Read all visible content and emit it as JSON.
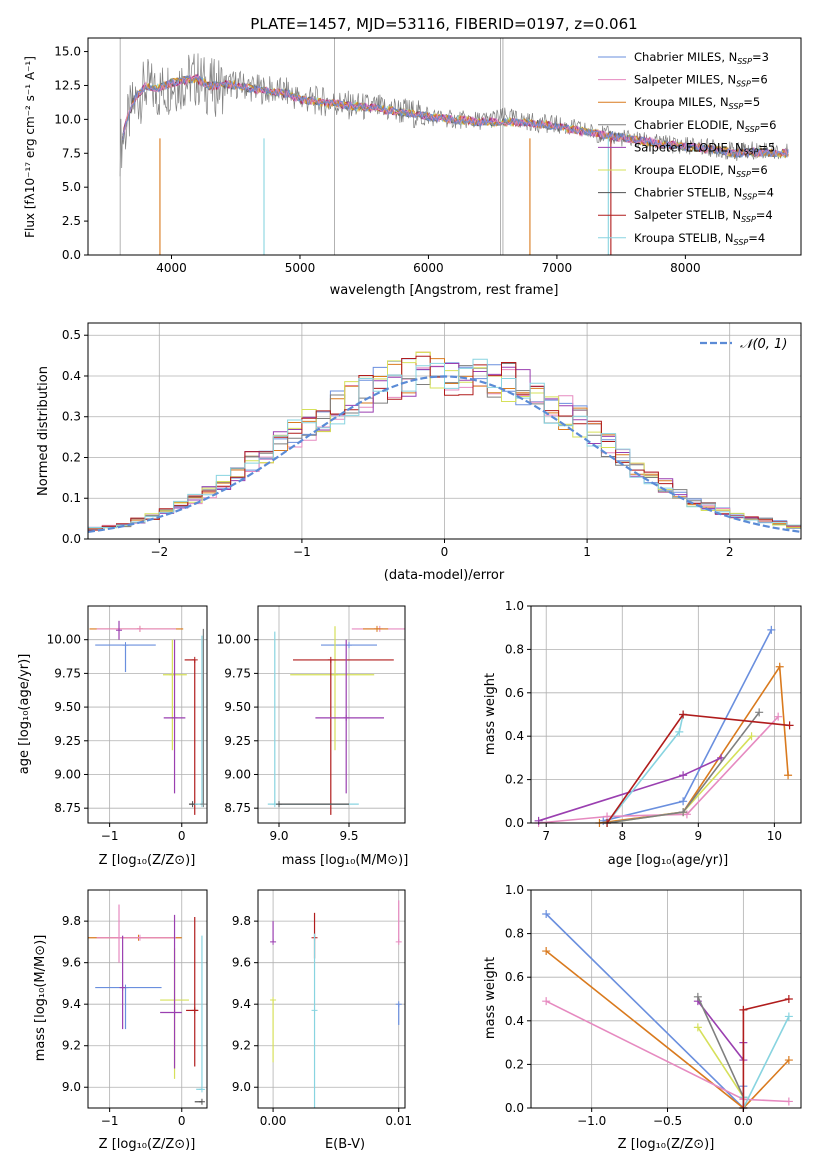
{
  "figure_title": "PLATE=1457, MJD=53116, FIBERID=0197, z=0.061",
  "model_colors": [
    "#6a8fde",
    "#e68ac0",
    "#d97a1e",
    "#7f7f7f",
    "#9a3fb0",
    "#d6e05a",
    "#505050",
    "#b01c1c",
    "#88d4e0"
  ],
  "panels": {
    "spectrum": {
      "ylabel": "Flux [fλ10⁻¹⁷ erg cm⁻² s⁻¹ A⁻¹]",
      "xlabel": "wavelength [Angstrom, rest frame]",
      "legend": [
        {
          "prefix": "Chabrier MILES, N",
          "sub": "SSP",
          "suffix": "=3"
        },
        {
          "prefix": "Salpeter MILES, N",
          "sub": "SSP",
          "suffix": "=6"
        },
        {
          "prefix": "Kroupa MILES, N",
          "sub": "SSP",
          "suffix": "=5"
        },
        {
          "prefix": "Chabrier ELODIE, N",
          "sub": "SSP",
          "suffix": "=6"
        },
        {
          "prefix": "Salpeter ELODIE, N",
          "sub": "SSP",
          "suffix": "=5"
        },
        {
          "prefix": "Kroupa ELODIE, N",
          "sub": "SSP",
          "suffix": "=6"
        },
        {
          "prefix": "Chabrier STELIB, N",
          "sub": "SSP",
          "suffix": "=4"
        },
        {
          "prefix": "Salpeter STELIB, N",
          "sub": "SSP",
          "suffix": "=4"
        },
        {
          "prefix": "Kroupa STELIB, N",
          "sub": "SSP",
          "suffix": "=4"
        }
      ]
    },
    "residuals": {
      "xlabel": "(data-model)/error",
      "ylabel": "Normed distribution",
      "legend": "𝒩(0, 1)"
    },
    "z_age": {
      "xlabel": "Z [log₁₀(Z/Z⊙)]",
      "ylabel": "age  [log₁₀(age/yr)]"
    },
    "mass_age": {
      "xlabel": "mass [log₁₀(M/M⊙)]"
    },
    "age_weight": {
      "xlabel": "age  [log₁₀(age/yr)]",
      "ylabel": "mass weight"
    },
    "z_mass": {
      "xlabel": "Z [log₁₀(Z/Z⊙)]",
      "ylabel": "mass [log₁₀(M/M⊙)]"
    },
    "ebv_mass": {
      "xlabel": "E(B-V)"
    },
    "z_weight": {
      "xlabel": "Z [log₁₀(Z/Z⊙)]",
      "ylabel": "mass weight"
    }
  },
  "chart_data": [
    {
      "type": "line",
      "title": "PLATE=1457, MJD=53116, FIBERID=0197, z=0.061",
      "xlabel": "wavelength [Angstrom, rest frame]",
      "ylabel": "Flux [fλ10⁻¹⁷ erg cm⁻² s⁻¹ A⁻¹]",
      "xlim": [
        3350,
        8900
      ],
      "ylim": [
        0,
        16
      ],
      "xticks": [
        4000,
        5000,
        6000,
        7000,
        8000
      ],
      "yticks": [
        0.0,
        2.5,
        5.0,
        7.5,
        10.0,
        12.5,
        15.0
      ],
      "grid": false,
      "legend_position": "top-right",
      "x": [
        3600,
        3650,
        3700,
        3800,
        3900,
        4000,
        4100,
        4200,
        4300,
        4400,
        4500,
        4700,
        4900,
        5000,
        5200,
        5400,
        5600,
        5800,
        6000,
        6200,
        6400,
        6600,
        6800,
        7000,
        7200,
        7400,
        7600,
        7800,
        8000,
        8200,
        8400,
        8600,
        8800
      ],
      "data_flux": [
        8.0,
        9.5,
        11.0,
        12.4,
        12.0,
        12.6,
        12.8,
        13.0,
        12.3,
        12.5,
        12.6,
        12.2,
        12.0,
        11.5,
        11.3,
        11.0,
        10.8,
        10.6,
        10.2,
        10.0,
        9.9,
        10.2,
        9.8,
        9.6,
        9.2,
        8.8,
        8.5,
        8.2,
        8.1,
        7.9,
        7.6,
        7.8,
        7.5
      ],
      "model_flux": [
        8.1,
        9.8,
        11.3,
        12.5,
        12.3,
        12.7,
        12.9,
        13.0,
        12.4,
        12.6,
        12.5,
        12.1,
        11.9,
        11.5,
        11.2,
        11.0,
        10.8,
        10.5,
        10.2,
        10.0,
        9.8,
        9.8,
        9.7,
        9.5,
        9.1,
        8.8,
        8.5,
        8.2,
        8.0,
        7.8,
        7.5,
        7.6,
        7.5
      ]
    },
    {
      "type": "bar",
      "xlabel": "(data-model)/error",
      "ylabel": "Normed distribution",
      "xlim": [
        -2.5,
        2.5
      ],
      "ylim": [
        0,
        0.53
      ],
      "xticks": [
        -2,
        -1,
        0,
        1,
        2
      ],
      "yticks": [
        0.0,
        0.1,
        0.2,
        0.3,
        0.4,
        0.5
      ],
      "grid": true,
      "legend_position": "top-right",
      "bin_width": 0.1,
      "bin_centers": [
        -2.45,
        -2.35,
        -2.25,
        -2.15,
        -2.05,
        -1.95,
        -1.85,
        -1.75,
        -1.65,
        -1.55,
        -1.45,
        -1.35,
        -1.25,
        -1.15,
        -1.05,
        -0.95,
        -0.85,
        -0.75,
        -0.65,
        -0.55,
        -0.45,
        -0.35,
        -0.25,
        -0.15,
        -0.05,
        0.05,
        0.15,
        0.25,
        0.35,
        0.45,
        0.55,
        0.65,
        0.75,
        0.85,
        0.95,
        1.05,
        1.15,
        1.25,
        1.35,
        1.45,
        1.55,
        1.65,
        1.75,
        1.85,
        1.95,
        2.05,
        2.15,
        2.25,
        2.35,
        2.45
      ],
      "base_density": [
        0.025,
        0.03,
        0.035,
        0.045,
        0.055,
        0.07,
        0.085,
        0.1,
        0.115,
        0.14,
        0.16,
        0.19,
        0.215,
        0.24,
        0.26,
        0.28,
        0.305,
        0.325,
        0.345,
        0.36,
        0.375,
        0.39,
        0.4,
        0.41,
        0.405,
        0.4,
        0.41,
        0.405,
        0.39,
        0.38,
        0.37,
        0.355,
        0.33,
        0.31,
        0.29,
        0.26,
        0.23,
        0.2,
        0.17,
        0.15,
        0.13,
        0.11,
        0.09,
        0.08,
        0.07,
        0.06,
        0.05,
        0.045,
        0.04,
        0.03
      ],
      "reference_curve": "N(0,1)"
    },
    {
      "type": "scatter",
      "xlabel": "Z [log₁₀(Z/Z⊙)]",
      "ylabel": "age  [log₁₀(age/yr)]",
      "xlim": [
        -1.3,
        0.35
      ],
      "ylim": [
        8.64,
        10.25
      ],
      "xticks": [
        -1,
        0
      ],
      "yticks": [
        8.75,
        9.0,
        9.25,
        9.5,
        9.75,
        10.0
      ],
      "grid": true,
      "points": [
        {
          "x": -0.58,
          "y": 10.08,
          "xerr": [
            0.7,
            0.6
          ],
          "yerr": [
            0,
            0
          ],
          "c": 2
        },
        {
          "x": -0.58,
          "y": 10.08,
          "xerr": [
            0.6,
            0.5
          ],
          "yerr": [
            0,
            0
          ],
          "c": 1
        },
        {
          "x": -0.87,
          "y": 10.07,
          "xerr": [
            0,
            0
          ],
          "yerr": [
            0.07,
            0.07
          ],
          "c": 4
        },
        {
          "x": -0.78,
          "y": 9.96,
          "xerr": [
            0.42,
            0.42
          ],
          "yerr": [
            0.2,
            0.0
          ],
          "c": 0
        },
        {
          "x": -0.13,
          "y": 9.74,
          "xerr": [
            0.13,
            0.2
          ],
          "yerr": [
            0.56,
            0.26
          ],
          "c": 5
        },
        {
          "x": -0.1,
          "y": 9.42,
          "xerr": [
            0.15,
            0.15
          ],
          "yerr": [
            0.56,
            0.58
          ],
          "c": 4
        },
        {
          "x": 0.18,
          "y": 9.85,
          "xerr": [
            0.14,
            0.0
          ],
          "yerr": [
            1.15,
            0.0
          ],
          "c": 7
        },
        {
          "x": 0.15,
          "y": 8.78,
          "xerr": [
            0.05,
            0.07
          ],
          "yerr": [
            0,
            0
          ],
          "c": 6
        },
        {
          "x": 0.28,
          "y": 8.78,
          "xerr": [
            0.1,
            0.0
          ],
          "yerr": [
            0.0,
            1.25
          ],
          "c": 8
        },
        {
          "x": 0.3,
          "y": 8.78,
          "xerr": [
            0,
            0
          ],
          "yerr": [
            0.0,
            1.3
          ],
          "c": 3
        }
      ]
    },
    {
      "type": "scatter",
      "xlabel": "mass [log₁₀(M/M⊙)]",
      "xlim": [
        8.85,
        9.9
      ],
      "ylim": [
        8.64,
        10.25
      ],
      "xticks": [
        9.0,
        9.5
      ],
      "yticks": [
        8.75,
        9.0,
        9.25,
        9.5,
        9.75,
        10.0
      ],
      "grid": true,
      "points": [
        {
          "x": 9.72,
          "y": 10.08,
          "xerr": [
            0.2,
            0.18
          ],
          "yerr": [
            0,
            0
          ],
          "c": 1
        },
        {
          "x": 9.7,
          "y": 10.08,
          "xerr": [
            0.1,
            0.08
          ],
          "yerr": [
            0,
            0
          ],
          "c": 2
        },
        {
          "x": 9.5,
          "y": 9.96,
          "xerr": [
            0.2,
            0.2
          ],
          "yerr": [
            0,
            0
          ],
          "c": 0
        },
        {
          "x": 9.4,
          "y": 9.74,
          "xerr": [
            0.32,
            0.28
          ],
          "yerr": [
            0.56,
            0.36
          ],
          "c": 5
        },
        {
          "x": 9.37,
          "y": 9.85,
          "xerr": [
            0.27,
            0.45
          ],
          "yerr": [
            1.15,
            0.0
          ],
          "c": 7
        },
        {
          "x": 9.48,
          "y": 9.42,
          "xerr": [
            0.22,
            0.27
          ],
          "yerr": [
            0.56,
            0.58
          ],
          "c": 4
        },
        {
          "x": 8.97,
          "y": 8.78,
          "xerr": [
            0.05,
            0.6
          ],
          "yerr": [
            0.0,
            1.28
          ],
          "c": 8
        },
        {
          "x": 9.0,
          "y": 8.78,
          "xerr": [
            0,
            0.5
          ],
          "yerr": [
            0,
            0
          ],
          "c": 6
        }
      ]
    },
    {
      "type": "line",
      "xlabel": "age  [log₁₀(age/yr)]",
      "ylabel": "mass weight",
      "xlim": [
        6.8,
        10.35
      ],
      "ylim": [
        0,
        1.0
      ],
      "xticks": [
        7,
        8,
        9,
        10
      ],
      "yticks": [
        0.0,
        0.2,
        0.4,
        0.6,
        0.8,
        1.0
      ],
      "grid": true,
      "series": [
        {
          "c": 0,
          "x": [
            7.75,
            8.8,
            9.96
          ],
          "y": [
            0.01,
            0.1,
            0.89
          ]
        },
        {
          "c": 2,
          "x": [
            7.7,
            8.8,
            10.07,
            10.18
          ],
          "y": [
            0.0,
            0.05,
            0.72,
            0.22
          ]
        },
        {
          "c": 1,
          "x": [
            6.9,
            7.8,
            8.85,
            10.05
          ],
          "y": [
            0.0,
            0.03,
            0.04,
            0.49
          ]
        },
        {
          "c": 4,
          "x": [
            6.9,
            8.8,
            9.3
          ],
          "y": [
            0.01,
            0.22,
            0.3
          ]
        },
        {
          "c": 5,
          "x": [
            7.8,
            8.8,
            9.7
          ],
          "y": [
            0.0,
            0.05,
            0.4
          ]
        },
        {
          "c": 3,
          "x": [
            7.8,
            8.8,
            9.8
          ],
          "y": [
            0.0,
            0.05,
            0.51
          ]
        },
        {
          "c": 8,
          "x": [
            7.8,
            8.75,
            8.8
          ],
          "y": [
            0.0,
            0.42,
            0.5
          ]
        },
        {
          "c": 7,
          "x": [
            7.8,
            8.8,
            10.2
          ],
          "y": [
            0.0,
            0.5,
            0.45
          ]
        }
      ]
    },
    {
      "type": "scatter",
      "xlabel": "Z [log₁₀(Z/Z⊙)]",
      "ylabel": "mass [log₁₀(M/M⊙)]",
      "xlim": [
        -1.3,
        0.35
      ],
      "ylim": [
        8.9,
        9.95
      ],
      "xticks": [
        -1,
        0
      ],
      "yticks": [
        9.0,
        9.2,
        9.4,
        9.6,
        9.8
      ],
      "grid": true,
      "points": [
        {
          "x": -0.6,
          "y": 9.72,
          "xerr": [
            0.7,
            0.6
          ],
          "yerr": [
            0,
            0
          ],
          "c": 2
        },
        {
          "x": -0.58,
          "y": 9.72,
          "xerr": [
            0.6,
            0.5
          ],
          "yerr": [
            0,
            0
          ],
          "c": 1
        },
        {
          "x": -0.87,
          "y": 9.72,
          "xerr": [
            0,
            0
          ],
          "yerr": [
            0.12,
            0.16
          ],
          "c": 1
        },
        {
          "x": -0.78,
          "y": 9.48,
          "xerr": [
            0.42,
            0.5
          ],
          "yerr": [
            0.2,
            0.0
          ],
          "c": 0
        },
        {
          "x": -0.82,
          "y": 9.48,
          "xerr": [
            0,
            0
          ],
          "yerr": [
            0.2,
            0.25
          ],
          "c": 4
        },
        {
          "x": -0.1,
          "y": 9.42,
          "xerr": [
            0.2,
            0.2
          ],
          "yerr": [
            0.38,
            0.25
          ],
          "c": 5
        },
        {
          "x": -0.1,
          "y": 9.36,
          "xerr": [
            0.2,
            0.1
          ],
          "yerr": [
            0.27,
            0.47
          ],
          "c": 4
        },
        {
          "x": 0.18,
          "y": 9.37,
          "xerr": [
            0.12,
            0.05
          ],
          "yerr": [
            0.27,
            0.45
          ],
          "c": 7
        },
        {
          "x": 0.28,
          "y": 8.99,
          "xerr": [
            0.08,
            0.0
          ],
          "yerr": [
            0.0,
            0.74
          ],
          "c": 8
        },
        {
          "x": 0.28,
          "y": 8.93,
          "xerr": [
            0.1,
            0.0
          ],
          "yerr": [
            0,
            0
          ],
          "c": 6
        }
      ]
    },
    {
      "type": "scatter",
      "xlabel": "E(B-V)",
      "xlim": [
        -0.0012,
        0.0105
      ],
      "ylim": [
        8.9,
        9.95
      ],
      "xticks": [
        0.0,
        0.01
      ],
      "yticks": [
        9.0,
        9.2,
        9.4,
        9.6,
        9.8
      ],
      "grid": true,
      "points": [
        {
          "x": 0.0,
          "y": 9.7,
          "yerr": [
            0.0,
            0.1
          ],
          "c": 4
        },
        {
          "x": 0.0,
          "y": 9.42,
          "yerr": [
            0.3,
            0.0
          ],
          "c": 5
        },
        {
          "x": 0.0033,
          "y": 9.72,
          "yerr": [
            0.1,
            0.12
          ],
          "c": 7
        },
        {
          "x": 0.0033,
          "y": 9.37,
          "yerr": [
            0.5,
            0.37
          ],
          "c": 8
        },
        {
          "x": 0.01,
          "y": 9.7,
          "yerr": [
            0.0,
            0.2
          ],
          "c": 1
        },
        {
          "x": 0.01,
          "y": 9.4,
          "yerr": [
            0.1,
            0.0
          ],
          "c": 0
        }
      ]
    },
    {
      "type": "line",
      "xlabel": "Z [log₁₀(Z/Z⊙)]",
      "ylabel": "mass weight",
      "xlim": [
        -1.4,
        0.38
      ],
      "ylim": [
        0,
        1.0
      ],
      "xticks": [
        -1.0,
        -0.5,
        0.0
      ],
      "yticks": [
        0.0,
        0.2,
        0.4,
        0.6,
        0.8,
        1.0
      ],
      "grid": true,
      "series": [
        {
          "c": 0,
          "x": [
            -1.3,
            0.0,
            0.0
          ],
          "y": [
            0.89,
            0.0,
            0.1
          ]
        },
        {
          "c": 2,
          "x": [
            -1.3,
            0.0,
            0.3
          ],
          "y": [
            0.72,
            0.0,
            0.22
          ]
        },
        {
          "c": 1,
          "x": [
            -1.3,
            0.0,
            0.3
          ],
          "y": [
            0.49,
            0.04,
            0.03
          ]
        },
        {
          "c": 4,
          "x": [
            -0.3,
            0.0,
            0.0
          ],
          "y": [
            0.49,
            0.22,
            0.3
          ]
        },
        {
          "c": 5,
          "x": [
            -0.3,
            0.0
          ],
          "y": [
            0.37,
            0.05
          ]
        },
        {
          "c": 3,
          "x": [
            -0.3,
            0.0
          ],
          "y": [
            0.51,
            0.05
          ]
        },
        {
          "c": 8,
          "x": [
            0.0,
            0.0,
            0.3
          ],
          "y": [
            0.05,
            0.0,
            0.42
          ]
        },
        {
          "c": 7,
          "x": [
            0.0,
            0.0,
            0.3
          ],
          "y": [
            0.0,
            0.45,
            0.5
          ]
        }
      ]
    }
  ]
}
